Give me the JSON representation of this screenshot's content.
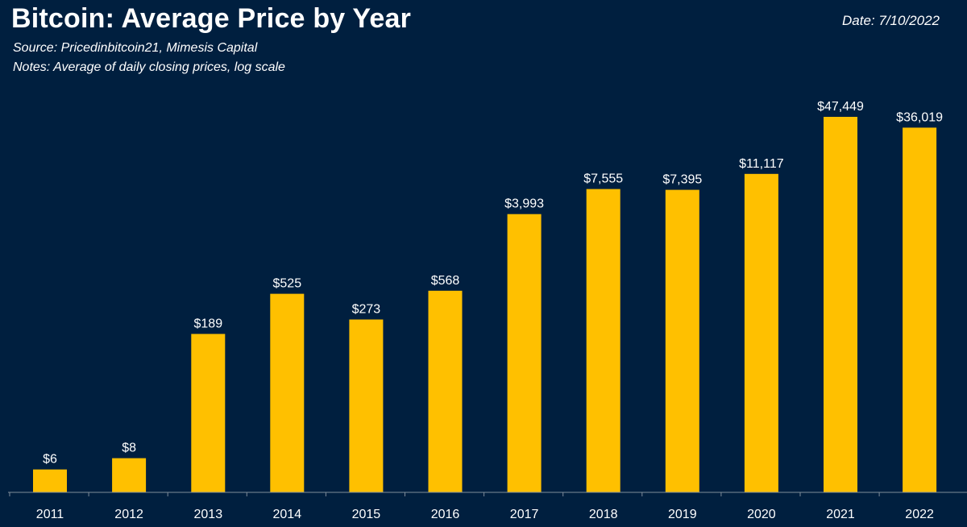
{
  "colors": {
    "background": "#001f3f",
    "bar": "#ffc000",
    "text": "#ffffff",
    "axis": "#7f8c9a"
  },
  "header": {
    "title": "Bitcoin: Average Price by Year",
    "date": "Date: 7/10/2022",
    "source": "Source: Pricedinbitcoin21, Mimesis Capital",
    "notes": "Notes: Average of daily closing prices, log scale"
  },
  "chart_data": {
    "type": "bar",
    "title": "Bitcoin: Average Price by Year",
    "xlabel": "",
    "ylabel": "",
    "y_scale": "log",
    "ylim": [
      1,
      60000
    ],
    "grid": false,
    "legend": "none",
    "categories": [
      "2011",
      "2012",
      "2013",
      "2014",
      "2015",
      "2016",
      "2017",
      "2018",
      "2019",
      "2020",
      "2021",
      "2022"
    ],
    "values": [
      6,
      8,
      189,
      525,
      273,
      568,
      3993,
      7555,
      7395,
      11117,
      47449,
      36019
    ],
    "data_labels": [
      "$6",
      "$8",
      "$189",
      "$525",
      "$273",
      "$568",
      "$3,993",
      "$7,555",
      "$7,395",
      "$11,117",
      "$47,449",
      "$36,019"
    ]
  }
}
